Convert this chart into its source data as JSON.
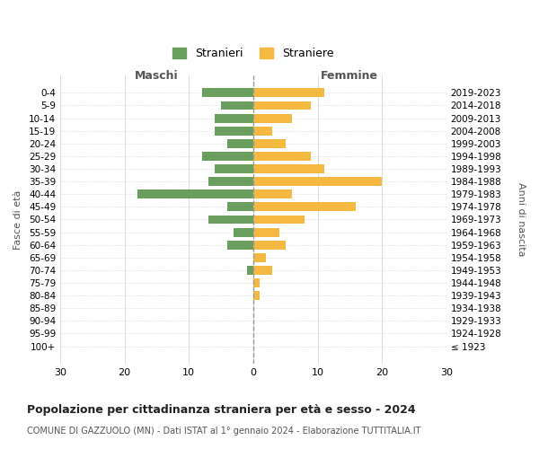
{
  "age_groups": [
    "100+",
    "95-99",
    "90-94",
    "85-89",
    "80-84",
    "75-79",
    "70-74",
    "65-69",
    "60-64",
    "55-59",
    "50-54",
    "45-49",
    "40-44",
    "35-39",
    "30-34",
    "25-29",
    "20-24",
    "15-19",
    "10-14",
    "5-9",
    "0-4"
  ],
  "birth_years": [
    "≤ 1923",
    "1924-1928",
    "1929-1933",
    "1934-1938",
    "1939-1943",
    "1944-1948",
    "1949-1953",
    "1954-1958",
    "1959-1963",
    "1964-1968",
    "1969-1973",
    "1974-1978",
    "1979-1983",
    "1984-1988",
    "1989-1993",
    "1994-1998",
    "1999-2003",
    "2004-2008",
    "2009-2013",
    "2014-2018",
    "2019-2023"
  ],
  "males": [
    0,
    0,
    0,
    0,
    0,
    0,
    1,
    0,
    4,
    3,
    7,
    4,
    18,
    7,
    6,
    8,
    4,
    6,
    6,
    5,
    8
  ],
  "females": [
    0,
    0,
    0,
    0,
    1,
    1,
    3,
    2,
    5,
    4,
    8,
    16,
    6,
    20,
    11,
    9,
    5,
    3,
    6,
    9,
    11
  ],
  "male_color": "#6a9e5e",
  "female_color": "#f5b942",
  "background_color": "#ffffff",
  "grid_color": "#cccccc",
  "title": "Popolazione per cittadinanza straniera per età e sesso - 2024",
  "subtitle": "COMUNE DI GAZZUOLO (MN) - Dati ISTAT al 1° gennaio 2024 - Elaborazione TUTTITALIA.IT",
  "xlabel_left": "Maschi",
  "xlabel_right": "Femmine",
  "ylabel_left": "Fasce di età",
  "ylabel_right": "Anni di nascita",
  "legend_male": "Stranieri",
  "legend_female": "Straniere",
  "xlim": 30
}
